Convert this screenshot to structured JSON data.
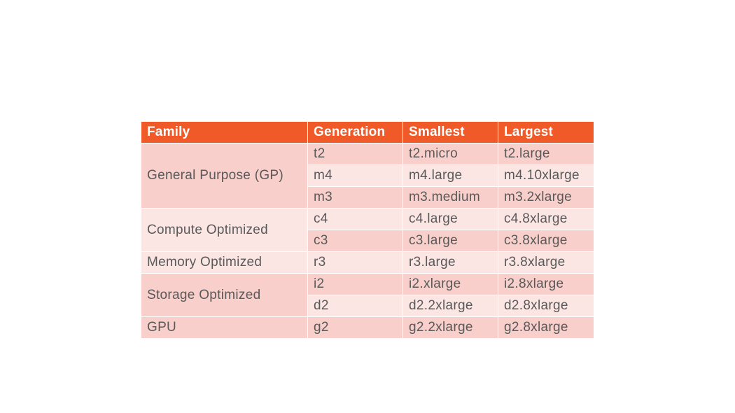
{
  "table": {
    "headers": {
      "family": "Family",
      "generation": "Generation",
      "smallest": "Smallest",
      "largest": "Largest"
    },
    "families": [
      {
        "name": "General Purpose (GP)"
      },
      {
        "name": "Compute Optimized"
      },
      {
        "name": "Memory Optimized"
      },
      {
        "name": "Storage Optimized"
      },
      {
        "name": "GPU"
      }
    ],
    "rows": [
      {
        "generation": "t2",
        "smallest": "t2.micro",
        "largest": "t2.large"
      },
      {
        "generation": "m4",
        "smallest": "m4.large",
        "largest": "m4.10xlarge"
      },
      {
        "generation": "m3",
        "smallest": "m3.medium",
        "largest": "m3.2xlarge"
      },
      {
        "generation": "c4",
        "smallest": "c4.large",
        "largest": "c4.8xlarge"
      },
      {
        "generation": "c3",
        "smallest": "c3.large",
        "largest": "c3.8xlarge"
      },
      {
        "generation": "r3",
        "smallest": "r3.large",
        "largest": "r3.8xlarge"
      },
      {
        "generation": "i2",
        "smallest": "i2.xlarge",
        "largest": "i2.8xlarge"
      },
      {
        "generation": "d2",
        "smallest": "d2.2xlarge",
        "largest": "d2.8xlarge"
      },
      {
        "generation": "g2",
        "smallest": "g2.2xlarge",
        "largest": "g2.8xlarge"
      }
    ]
  },
  "colors": {
    "header": "#f05a28",
    "row_dark": "#f8cfca",
    "row_light": "#fce6e4",
    "text": "#595959"
  }
}
